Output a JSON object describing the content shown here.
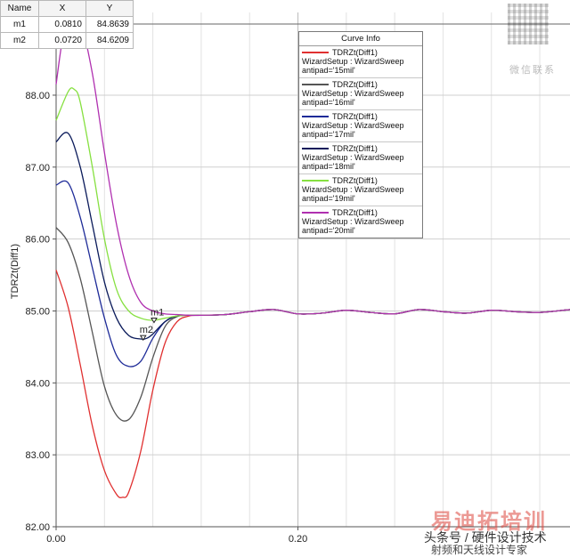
{
  "chart_data": {
    "type": "line",
    "xlabel": "",
    "ylabel": "TDRZt(Diff1)",
    "xlim": [
      0.0,
      0.425
    ],
    "ylim": [
      82.0,
      89.15
    ],
    "x_ticks": [
      0.0,
      0.2
    ],
    "x_tick_labels": [
      "0.00",
      "0.20"
    ],
    "y_ticks": [
      82.0,
      83.0,
      84.0,
      85.0,
      86.0,
      87.0,
      88.0
    ],
    "y_tick_labels": [
      "82.00",
      "83.00",
      "84.00",
      "85.00",
      "86.00",
      "87.00",
      "88.00"
    ],
    "grid": true,
    "legend_title": "Curve Info",
    "legend_position": "top-right",
    "series": [
      {
        "name": "TDRZt(Diff1)",
        "label_line2": "WizardSetup : WizardSweep",
        "label_line3": "antipad='15mil'",
        "color": "#e03030",
        "x": [
          0.0,
          0.01,
          0.02,
          0.03,
          0.04,
          0.05,
          0.055,
          0.06,
          0.07,
          0.08,
          0.09,
          0.1,
          0.11,
          0.12,
          0.14,
          0.16,
          0.18,
          0.2,
          0.22,
          0.24,
          0.26,
          0.28,
          0.3,
          0.32,
          0.34,
          0.36,
          0.38,
          0.4,
          0.425
        ],
        "y": [
          85.57,
          85.05,
          84.25,
          83.4,
          82.78,
          82.45,
          82.41,
          82.48,
          83.05,
          83.9,
          84.55,
          84.85,
          84.93,
          84.94,
          84.95,
          84.99,
          85.02,
          84.96,
          84.97,
          85.01,
          84.98,
          84.96,
          85.02,
          84.99,
          84.97,
          85.01,
          84.99,
          84.98,
          85.02
        ]
      },
      {
        "name": "TDRZt(Diff1)",
        "label_line2": "WizardSetup : WizardSweep",
        "label_line3": "antipad='16mil'",
        "color": "#555555",
        "x": [
          0.0,
          0.01,
          0.02,
          0.03,
          0.04,
          0.05,
          0.06,
          0.07,
          0.08,
          0.09,
          0.1,
          0.11,
          0.12,
          0.14,
          0.16,
          0.18,
          0.2,
          0.22,
          0.24,
          0.26,
          0.28,
          0.3,
          0.32,
          0.34,
          0.36,
          0.38,
          0.4,
          0.425
        ],
        "y": [
          86.16,
          85.95,
          85.45,
          84.7,
          83.95,
          83.55,
          83.49,
          83.8,
          84.35,
          84.78,
          84.92,
          84.94,
          84.94,
          84.95,
          84.99,
          85.02,
          84.96,
          84.97,
          85.01,
          84.98,
          84.96,
          85.02,
          84.99,
          84.97,
          85.01,
          84.99,
          84.98,
          85.02
        ]
      },
      {
        "name": "TDRZt(Diff1)",
        "label_line2": "WizardSetup : WizardSweep",
        "label_line3": "antipad='17mil'",
        "color": "#1e2b98",
        "x": [
          0.0,
          0.01,
          0.02,
          0.03,
          0.04,
          0.05,
          0.06,
          0.07,
          0.08,
          0.09,
          0.1,
          0.11,
          0.12,
          0.14,
          0.16,
          0.18,
          0.2,
          0.22,
          0.24,
          0.26,
          0.28,
          0.3,
          0.32,
          0.34,
          0.36,
          0.38,
          0.4,
          0.425
        ],
        "y": [
          86.75,
          86.78,
          86.3,
          85.6,
          84.9,
          84.38,
          84.23,
          84.3,
          84.62,
          84.85,
          84.93,
          84.94,
          84.94,
          84.95,
          84.99,
          85.02,
          84.96,
          84.97,
          85.01,
          84.98,
          84.96,
          85.02,
          84.99,
          84.97,
          85.01,
          84.99,
          84.98,
          85.02
        ]
      },
      {
        "name": "TDRZt(Diff1)",
        "label_line2": "WizardSetup : WizardSweep",
        "label_line3": "antipad='18mil'",
        "color": "#0a1a5a",
        "x": [
          0.0,
          0.01,
          0.02,
          0.03,
          0.04,
          0.05,
          0.06,
          0.07,
          0.075,
          0.08,
          0.09,
          0.1,
          0.11,
          0.12,
          0.14,
          0.16,
          0.18,
          0.2,
          0.22,
          0.24,
          0.26,
          0.28,
          0.3,
          0.32,
          0.34,
          0.36,
          0.38,
          0.4,
          0.425
        ],
        "y": [
          87.35,
          87.47,
          87.0,
          86.2,
          85.4,
          84.9,
          84.66,
          84.61,
          84.62,
          84.68,
          84.85,
          84.93,
          84.94,
          84.94,
          84.95,
          84.99,
          85.02,
          84.96,
          84.97,
          85.01,
          84.98,
          84.96,
          85.02,
          84.99,
          84.97,
          85.01,
          84.99,
          84.98,
          85.02
        ]
      },
      {
        "name": "TDRZt(Diff1)",
        "label_line2": "WizardSetup : WizardSweep",
        "label_line3": "antipad='19mil'",
        "color": "#86e040",
        "x": [
          0.0,
          0.01,
          0.015,
          0.02,
          0.03,
          0.04,
          0.05,
          0.06,
          0.07,
          0.08,
          0.09,
          0.1,
          0.11,
          0.12,
          0.14,
          0.16,
          0.18,
          0.2,
          0.22,
          0.24,
          0.26,
          0.28,
          0.3,
          0.32,
          0.34,
          0.36,
          0.38,
          0.4,
          0.425
        ],
        "y": [
          87.65,
          88.05,
          88.08,
          87.9,
          87.0,
          86.0,
          85.3,
          85.0,
          84.9,
          84.87,
          84.9,
          84.93,
          84.94,
          84.94,
          84.95,
          84.99,
          85.02,
          84.96,
          84.97,
          85.01,
          84.98,
          84.96,
          85.02,
          84.99,
          84.97,
          85.01,
          84.99,
          84.98,
          85.02
        ]
      },
      {
        "name": "TDRZt(Diff1)",
        "label_line2": "WizardSetup : WizardSweep",
        "label_line3": "antipad='20mil'",
        "color": "#b030b0",
        "x": [
          0.0,
          0.005,
          0.01,
          0.02,
          0.03,
          0.04,
          0.05,
          0.06,
          0.07,
          0.08,
          0.09,
          0.1,
          0.11,
          0.12,
          0.14,
          0.16,
          0.18,
          0.2,
          0.22,
          0.24,
          0.26,
          0.28,
          0.3,
          0.32,
          0.34,
          0.36,
          0.38,
          0.4,
          0.425
        ],
        "y": [
          88.15,
          88.75,
          89.08,
          89.02,
          88.3,
          87.2,
          86.2,
          85.5,
          85.12,
          85.0,
          84.96,
          84.95,
          84.94,
          84.94,
          84.95,
          84.99,
          85.02,
          84.96,
          84.97,
          85.01,
          84.98,
          84.96,
          85.02,
          84.99,
          84.97,
          85.01,
          84.99,
          84.98,
          85.02
        ]
      }
    ],
    "markers": [
      {
        "name": "m1",
        "x": 0.081,
        "y": 84.8639
      },
      {
        "name": "m2",
        "x": 0.072,
        "y": 84.6209
      }
    ]
  },
  "marker_table": {
    "headers": [
      "Name",
      "X",
      "Y"
    ],
    "rows": [
      {
        "name": "m1",
        "x": "0.0810",
        "y": "84.8639"
      },
      {
        "name": "m2",
        "x": "0.0720",
        "y": "84.6209"
      }
    ]
  },
  "watermark": {
    "qr_caption": "微信联系",
    "brand": "易迪拓培训",
    "line1": "头条号 / 硬件设计技术",
    "line2": "射频和天线设计专家"
  }
}
